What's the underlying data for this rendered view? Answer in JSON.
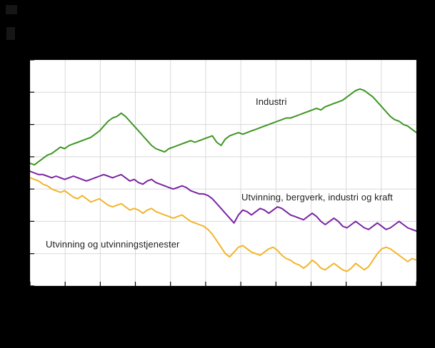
{
  "canvas": {
    "background": "#000000",
    "plot_background": "#ffffff"
  },
  "chart_data": {
    "type": "line",
    "title": "",
    "xlabel": "",
    "ylabel": "",
    "x_unit": "time (monthly observations, tick labels not visible in screenshot)",
    "tick_labels_visible": false,
    "grid": true,
    "grid_color": "#d9d9d9",
    "tick_color": "#000000",
    "ylim": [
      60,
      130
    ],
    "y_gridline_step": 10,
    "x_gridlines": 12,
    "legend_position": "labels-in-plot",
    "series": [
      {
        "name": "Industri",
        "color": "#3e9624",
        "values": [
          98,
          97.5,
          98.5,
          99.5,
          100.5,
          101,
          102,
          103,
          102.5,
          103.5,
          104,
          104.5,
          105,
          105.5,
          106,
          107,
          108,
          109.5,
          111,
          112,
          112.5,
          113.5,
          112.5,
          111,
          109.5,
          108,
          106.5,
          105,
          103.5,
          102.5,
          102,
          101.5,
          102.5,
          103,
          103.5,
          104,
          104.5,
          105,
          104.5,
          105,
          105.5,
          106,
          106.5,
          104.5,
          103.5,
          105.5,
          106.5,
          107,
          107.5,
          107,
          107.5,
          108,
          108.5,
          109,
          109.5,
          110,
          110.5,
          111,
          111.5,
          112,
          112,
          112.5,
          113,
          113.5,
          114,
          114.5,
          115,
          114.5,
          115.5,
          116,
          116.5,
          117,
          117.5,
          118.5,
          119.5,
          120.5,
          121,
          120.5,
          119.5,
          118.5,
          117,
          115.5,
          114,
          112.5,
          111.5,
          111,
          110,
          109.5,
          108.5,
          107.5
        ]
      },
      {
        "name": "Utvinning, bergverk, industri og kraft",
        "color": "#7b24a3",
        "values": [
          95.5,
          95,
          94.5,
          94.5,
          94,
          93.5,
          94,
          93.5,
          93,
          93.5,
          94,
          93.5,
          93,
          92.5,
          93,
          93.5,
          94,
          94.5,
          94,
          93.5,
          94,
          94.5,
          93.5,
          92.5,
          93,
          92,
          91.5,
          92.5,
          93,
          92,
          91.5,
          91,
          90.5,
          90,
          90.5,
          91,
          90.5,
          89.5,
          89,
          88.5,
          88.5,
          88,
          87,
          85.5,
          84,
          82.5,
          81,
          79.5,
          82,
          83.5,
          83,
          82,
          83,
          84,
          83.5,
          82.5,
          83.5,
          84.5,
          84,
          83,
          82,
          81.5,
          81,
          80.5,
          81.5,
          82.5,
          81.5,
          80,
          79,
          80,
          81,
          80,
          78.5,
          78,
          79,
          80,
          79,
          78,
          77.5,
          78.5,
          79.5,
          78.5,
          77.5,
          78,
          79,
          80,
          79,
          78,
          77.5,
          77
        ]
      },
      {
        "name": "Utvinning og utvinningstjenester",
        "color": "#f2b52a",
        "values": [
          93.5,
          93,
          92.5,
          91.5,
          91,
          90,
          89.5,
          89,
          89.5,
          88.5,
          87.5,
          87,
          88,
          87,
          86,
          86.5,
          87,
          86,
          85,
          84.5,
          85,
          85.5,
          84.5,
          83.5,
          84,
          83.5,
          82.5,
          83.5,
          84,
          83,
          82.5,
          82,
          81.5,
          81,
          81.5,
          82,
          81,
          80,
          79.5,
          79,
          78.5,
          77.5,
          76,
          74,
          72,
          70,
          69,
          70.5,
          72,
          72.5,
          71.5,
          70.5,
          70,
          69.5,
          70.5,
          71.5,
          72,
          71,
          69.5,
          68.5,
          68,
          67,
          66.5,
          65.5,
          66.5,
          68,
          67,
          65.5,
          65,
          66,
          67,
          66,
          65,
          64.5,
          65.5,
          67,
          66,
          65,
          66,
          68,
          70,
          71.5,
          72,
          71.5,
          70.5,
          69.5,
          68.5,
          67.5,
          68.5,
          68
        ]
      }
    ]
  }
}
